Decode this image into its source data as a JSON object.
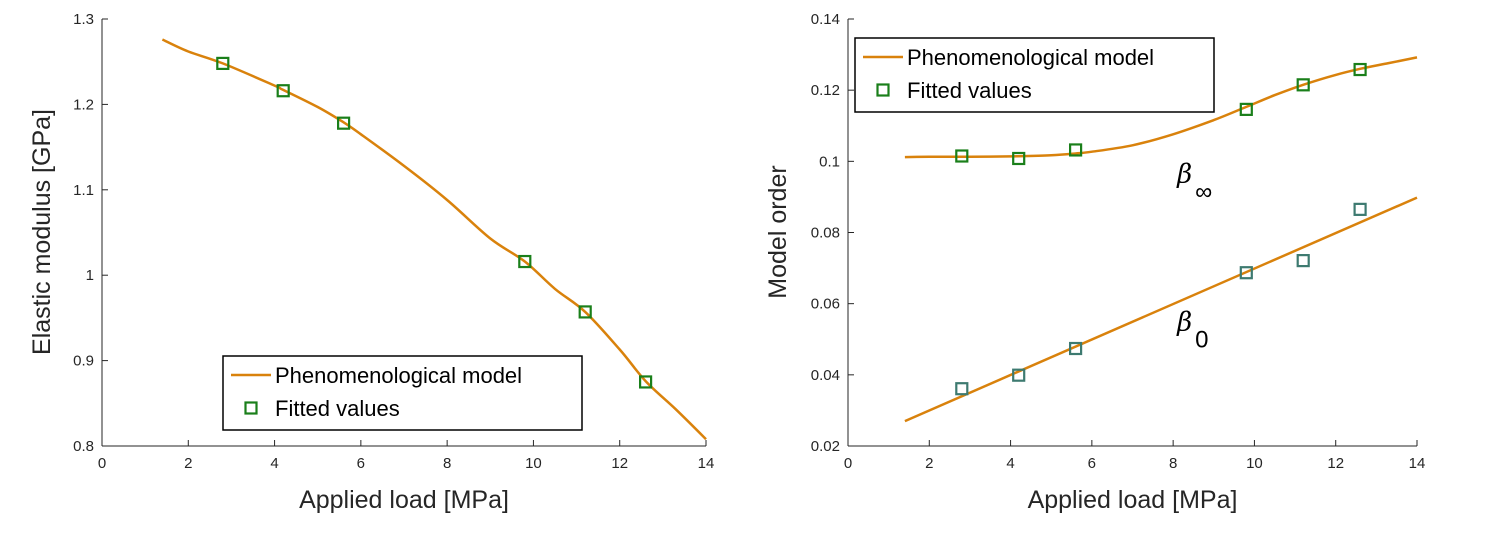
{
  "chart_data": [
    {
      "type": "line",
      "xlabel": "Applied load [MPa]",
      "ylabel": "Elastic modulus [GPa]",
      "xlim": [
        0,
        14
      ],
      "ylim": [
        0.8,
        1.3
      ],
      "xticks": [
        0,
        2,
        4,
        6,
        8,
        10,
        12,
        14
      ],
      "yticks": [
        0.8,
        0.9,
        1,
        1.1,
        1.2,
        1.3
      ],
      "xtick_labels": [
        "0",
        "2",
        "4",
        "6",
        "8",
        "10",
        "12",
        "14"
      ],
      "ytick_labels": [
        "0.8",
        "0.9",
        "1",
        "1.1",
        "1.2",
        "1.3"
      ],
      "legend": {
        "placement": "bottom-right",
        "model_label": "Phenomenological model",
        "fitted_label": "Fitted values"
      },
      "series": [
        {
          "name": "Phenomenological model",
          "kind": "line",
          "color": "#D9820C",
          "x": [
            1.4,
            2,
            2.8,
            4,
            4.2,
            5,
            5.6,
            6,
            7,
            8,
            9,
            9.8,
            10.5,
            11.2,
            12,
            12.6,
            13.3,
            14
          ],
          "y": [
            1.276,
            1.262,
            1.248,
            1.222,
            1.217,
            1.197,
            1.179,
            1.165,
            1.128,
            1.088,
            1.043,
            1.016,
            0.984,
            0.957,
            0.913,
            0.876,
            0.843,
            0.808
          ]
        },
        {
          "name": "Fitted values",
          "kind": "scatter",
          "color": "#1A7F1A",
          "x": [
            2.8,
            4.2,
            5.6,
            9.8,
            11.2,
            12.6
          ],
          "y": [
            1.248,
            1.216,
            1.178,
            1.016,
            0.957,
            0.875
          ]
        }
      ]
    },
    {
      "type": "line",
      "xlabel": "Applied load [MPa]",
      "ylabel": "Model order",
      "xlim": [
        0,
        14
      ],
      "ylim": [
        0.02,
        0.14
      ],
      "xticks": [
        0,
        2,
        4,
        6,
        8,
        10,
        12,
        14
      ],
      "yticks": [
        0.02,
        0.04,
        0.06,
        0.08,
        0.1,
        0.12,
        0.14
      ],
      "xtick_labels": [
        "0",
        "2",
        "4",
        "6",
        "8",
        "10",
        "12",
        "14"
      ],
      "ytick_labels": [
        "0.02",
        "0.04",
        "0.06",
        "0.08",
        "0.1",
        "0.12",
        "0.14"
      ],
      "legend": {
        "placement": "top-left",
        "model_label": "Phenomenological model",
        "fitted_label": "Fitted values"
      },
      "annotations": [
        {
          "symbol": "β",
          "subscript": "∞",
          "x": 8.0,
          "y": 0.094
        },
        {
          "symbol": "β",
          "subscript": "0",
          "x": 8.0,
          "y": 0.0525
        }
      ],
      "series": [
        {
          "name": "Phenomenological model (β∞)",
          "kind": "line",
          "color": "#D9820C",
          "x": [
            1.4,
            2,
            3,
            4,
            5,
            5.6,
            6,
            7,
            8,
            9,
            9.8,
            10.5,
            11.2,
            12,
            12.6,
            13.3,
            14
          ],
          "y": [
            0.1012,
            0.1013,
            0.1013,
            0.1014,
            0.1017,
            0.1022,
            0.1027,
            0.1045,
            0.1076,
            0.1116,
            0.1153,
            0.1186,
            0.1215,
            0.1243,
            0.126,
            0.1276,
            0.1292
          ]
        },
        {
          "name": "Fitted values (β∞)",
          "kind": "scatter",
          "color": "#1A7F1A",
          "x": [
            2.8,
            4.2,
            5.6,
            9.8,
            11.2,
            12.6
          ],
          "y": [
            0.1015,
            0.1008,
            0.1032,
            0.1146,
            0.1215,
            0.1258
          ]
        },
        {
          "name": "Phenomenological model (β0)",
          "kind": "line",
          "color": "#D9820C",
          "x": [
            1.4,
            14
          ],
          "y": [
            0.027,
            0.0898
          ]
        },
        {
          "name": "Fitted values (β0)",
          "kind": "scatter",
          "color": "#3D7A70",
          "x": [
            2.8,
            4.2,
            5.6,
            9.8,
            11.2,
            12.6
          ],
          "y": [
            0.0361,
            0.0399,
            0.0474,
            0.0687,
            0.0721,
            0.0865
          ]
        }
      ]
    }
  ]
}
